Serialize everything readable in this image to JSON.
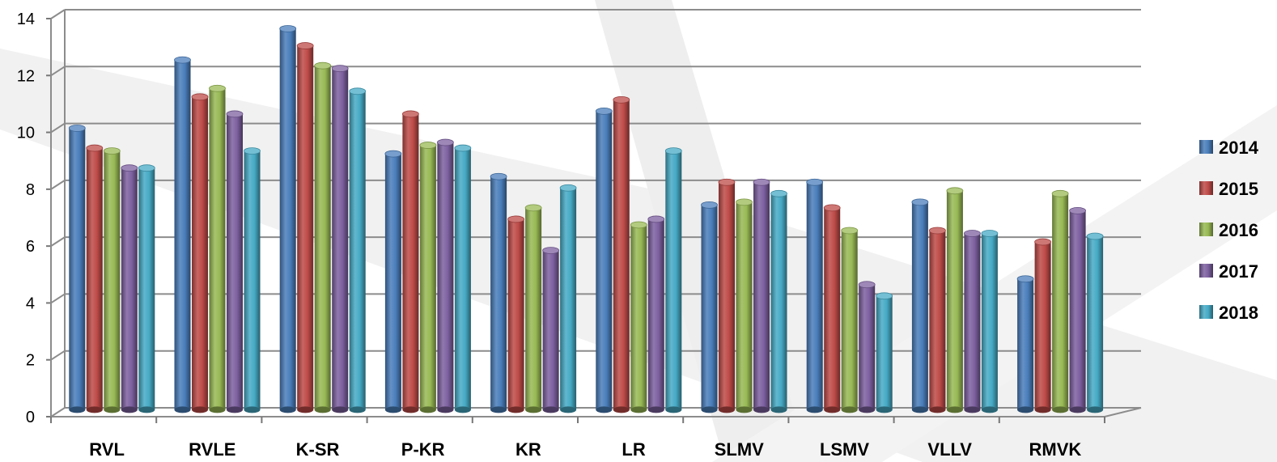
{
  "chart_data": {
    "type": "bar",
    "title": "",
    "xlabel": "",
    "ylabel": "",
    "ylim": [
      0,
      14
    ],
    "yticks": [
      0,
      2,
      4,
      6,
      8,
      10,
      12,
      14
    ],
    "grid": true,
    "legend_position": "right",
    "categories": [
      "RVL",
      "RVLE",
      "K-SR",
      "P-KR",
      "KR",
      "LR",
      "SLMV",
      "LSMV",
      "VLLV",
      "RMVK"
    ],
    "series": [
      {
        "name": "2014",
        "color": "#4a7ebb",
        "values": [
          9.9,
          12.3,
          13.4,
          9.0,
          8.2,
          10.5,
          7.2,
          8.0,
          7.3,
          4.6
        ]
      },
      {
        "name": "2015",
        "color": "#be4b48",
        "values": [
          9.2,
          11.0,
          12.8,
          10.4,
          6.7,
          10.9,
          8.0,
          7.1,
          6.3,
          5.9
        ]
      },
      {
        "name": "2016",
        "color": "#98b954",
        "values": [
          9.1,
          11.3,
          12.1,
          9.3,
          7.1,
          6.5,
          7.3,
          6.3,
          7.7,
          7.6
        ]
      },
      {
        "name": "2017",
        "color": "#7d60a0",
        "values": [
          8.5,
          10.4,
          12.0,
          9.4,
          5.6,
          6.7,
          8.0,
          4.4,
          6.2,
          7.0
        ]
      },
      {
        "name": "2018",
        "color": "#46aac5",
        "values": [
          8.5,
          9.1,
          11.2,
          9.2,
          7.8,
          9.1,
          7.6,
          4.0,
          6.2,
          6.1
        ]
      }
    ]
  }
}
